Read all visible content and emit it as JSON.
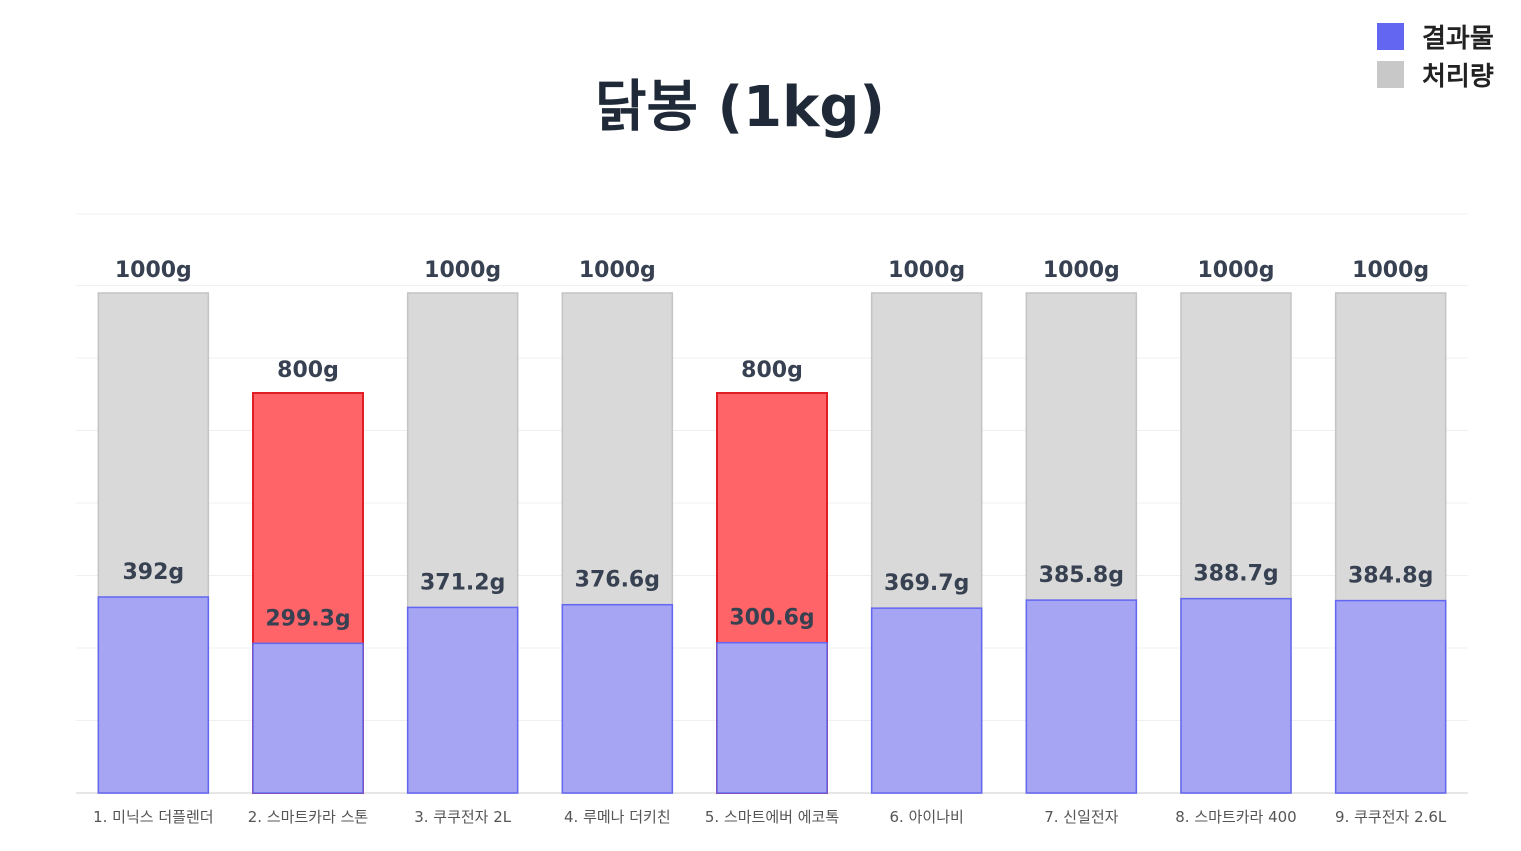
{
  "chart_data": {
    "type": "bar",
    "title": "닭봉 (1kg)",
    "legend": [
      {
        "name": "결과물",
        "color": "#6366f1"
      },
      {
        "name": "처리량",
        "color": "#c8c8c8"
      }
    ],
    "legend_position": "top-right",
    "categories": [
      "1. 미닉스 더플렌더",
      "2. 스마트카라 스톤",
      "3. 쿠쿠전자 2L",
      "4. 루메나 더키친",
      "5. 스마트에버 에코톡",
      "6. 아이나비",
      "7. 신일전자",
      "8. 스마트카라 400",
      "9. 쿠쿠전자 2.6L"
    ],
    "series": [
      {
        "name": "처리량",
        "values": [
          1000,
          800,
          1000,
          1000,
          800,
          1000,
          1000,
          1000,
          1000
        ],
        "labels": [
          "1000g",
          "800g",
          "1000g",
          "1000g",
          "800g",
          "1000g",
          "1000g",
          "1000g",
          "1000g"
        ]
      },
      {
        "name": "결과물",
        "values": [
          392,
          299.3,
          371.2,
          376.6,
          300.6,
          369.7,
          385.8,
          388.7,
          384.8
        ],
        "labels": [
          "392g",
          "299.3g",
          "371.2g",
          "376.6g",
          "300.6g",
          "369.7g",
          "385.8g",
          "388.7g",
          "384.8g"
        ]
      }
    ],
    "highlighted_categories": [
      "2. 스마트카라 스톤",
      "5. 스마트에버 에코톡"
    ],
    "colors": {
      "processed": "#d9d9d9",
      "processed_border": "#c4c4c4",
      "result": "#a5a5f4",
      "result_border": "#6366f1",
      "highlight": "#ff6468",
      "highlight_border": "#e11d25",
      "gridline": "#f0f0f0",
      "label": "#374151",
      "tick": "#555555"
    },
    "ylim": [
      0,
      1000
    ],
    "grid": true
  }
}
